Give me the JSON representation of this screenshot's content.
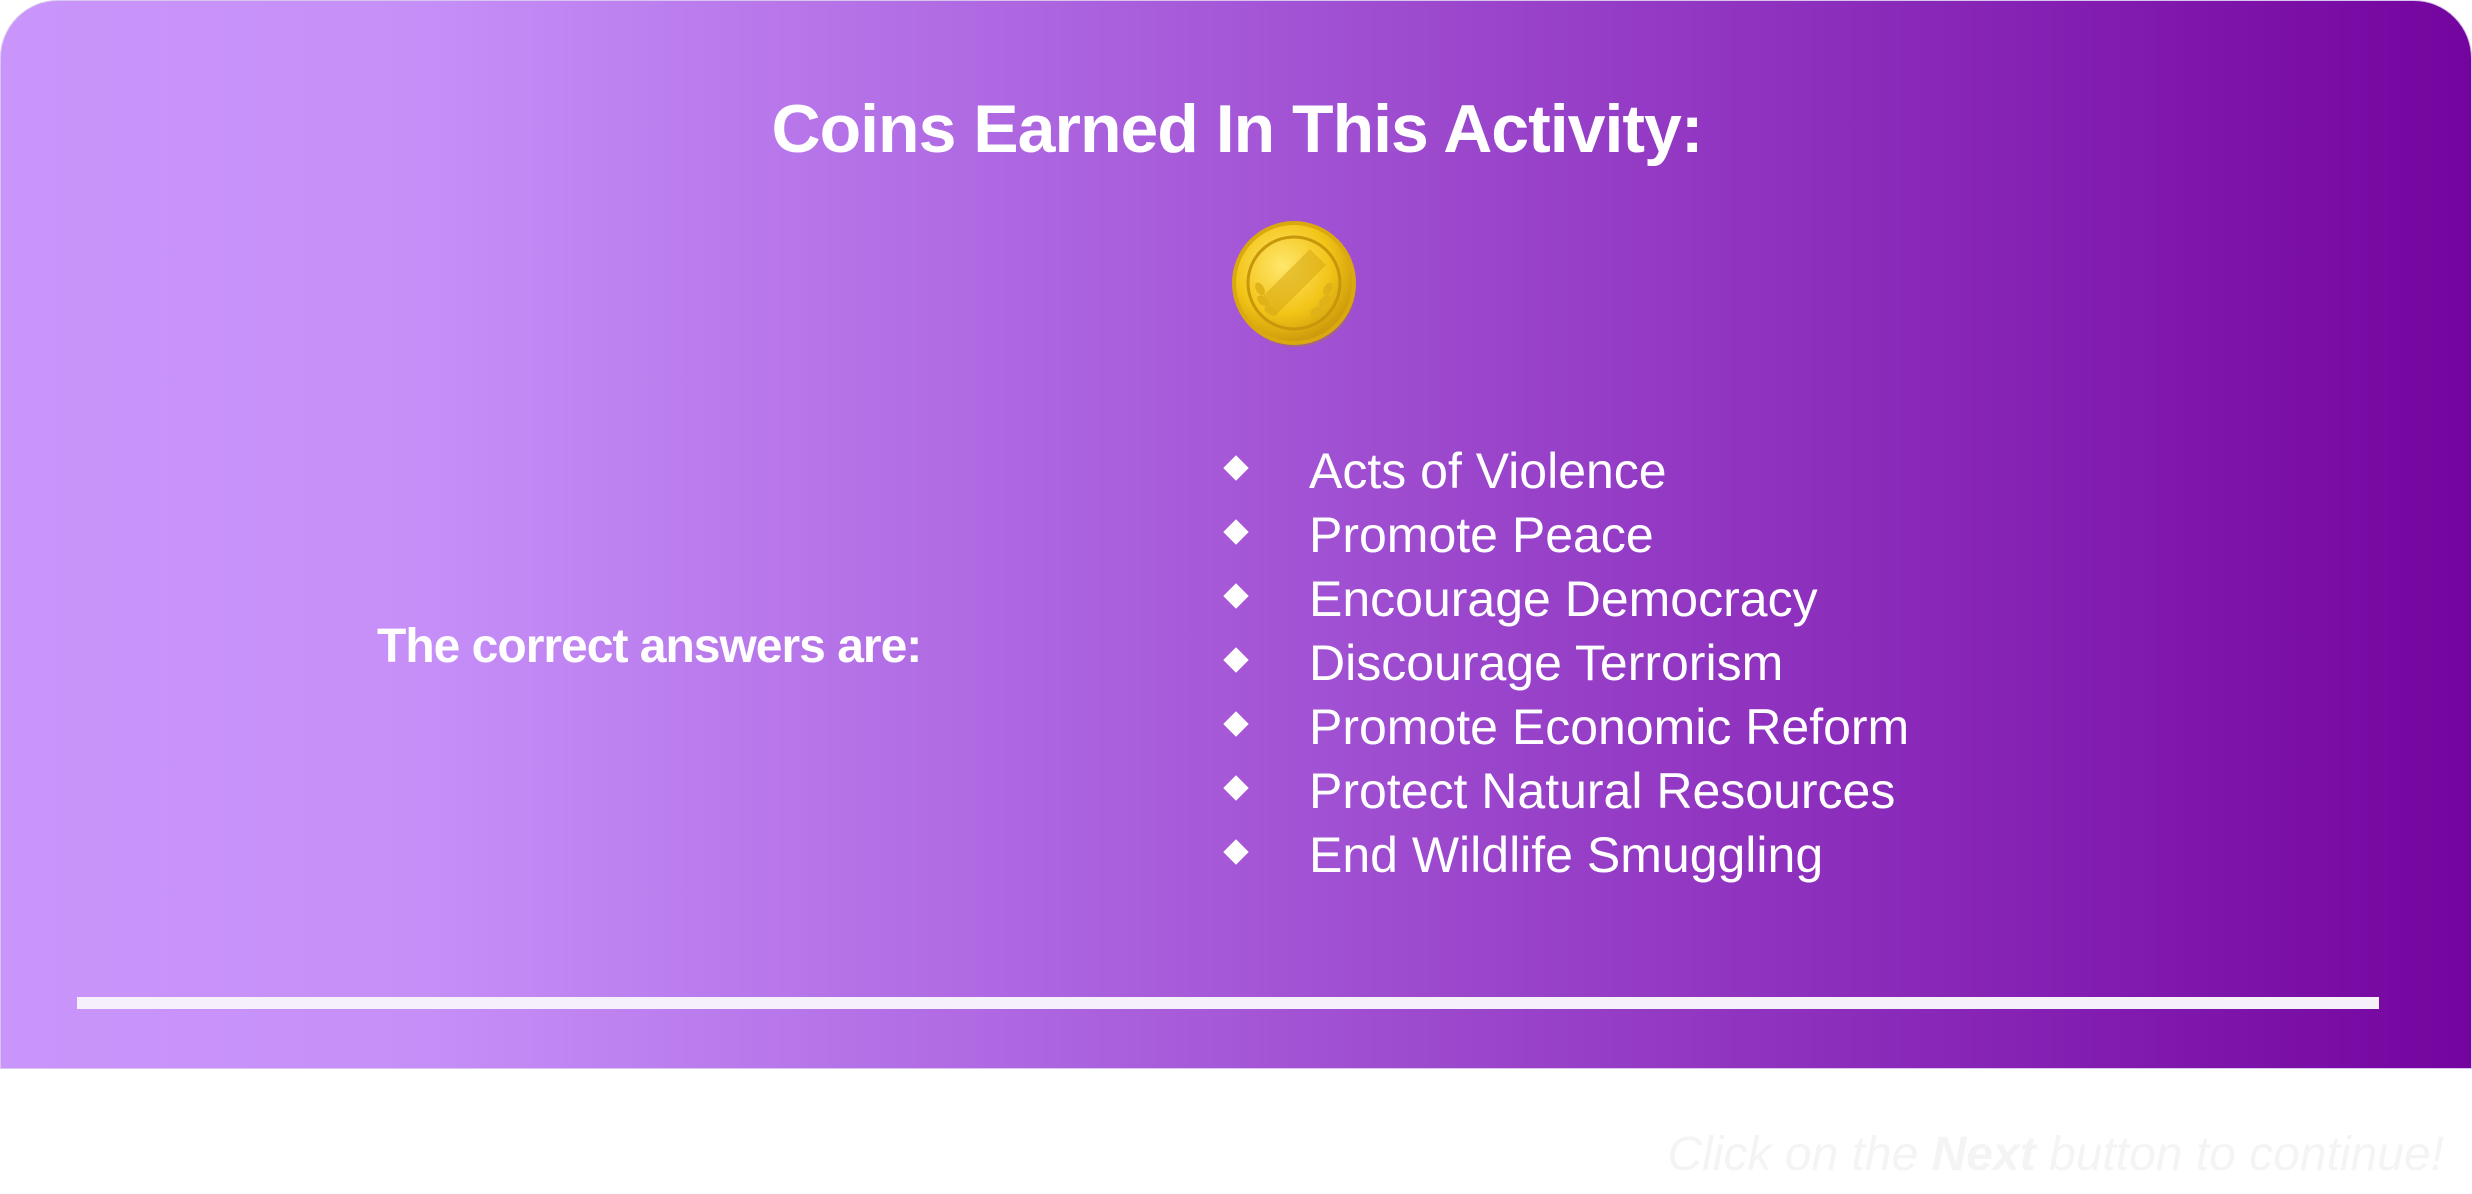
{
  "results": {
    "title": "Coins Earned In This Activity:",
    "coin_icon": "gold-coin-icon",
    "correct_label": "The correct answers are:",
    "answers": [
      "Acts of Violence",
      "Promote Peace",
      "Encourage Democracy",
      "Discourage Terrorism",
      "Promote Economic Reform",
      "Protect Natural Resources",
      "End Wildlife Smuggling"
    ]
  },
  "footer": {
    "hint_prefix": "Click on the ",
    "hint_emphasis": "Next",
    "hint_suffix": " button to continue!"
  },
  "colors": {
    "gradient_start": "#c995fb",
    "gradient_end": "#74049e",
    "coin_gold": "#f2c417"
  }
}
